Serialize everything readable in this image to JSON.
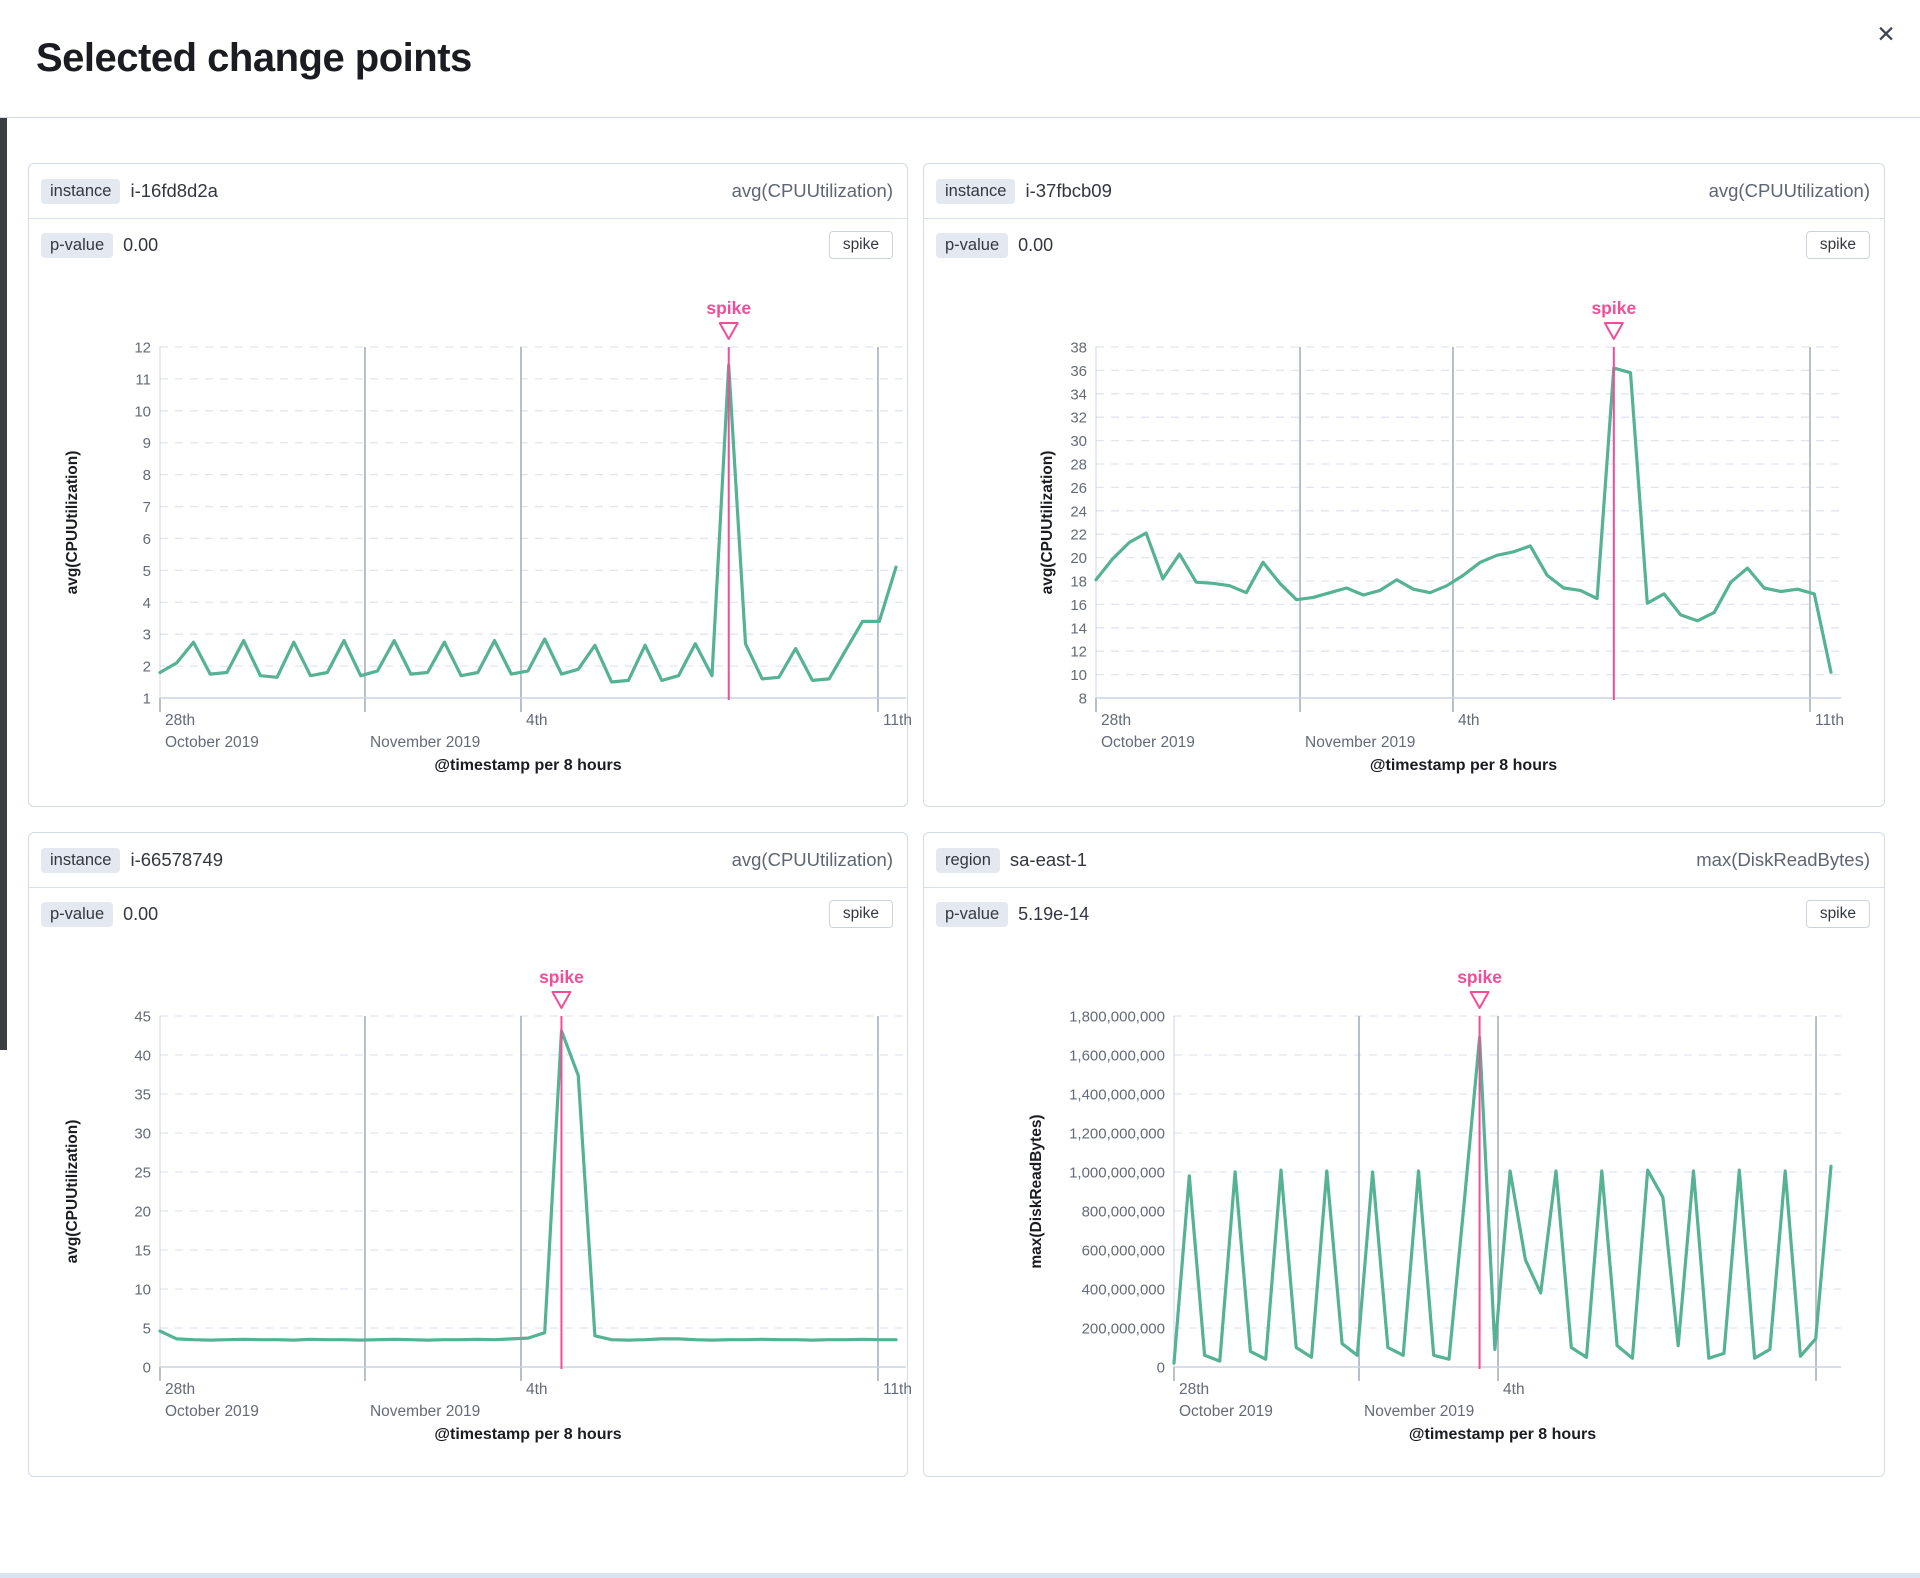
{
  "modal": {
    "title": "Selected change points",
    "close_glyph": "✕"
  },
  "colors": {
    "series_line": "#55b294",
    "accent_pink": "#f04e98",
    "grid_dash": "#e1e5f0",
    "event_line": "#a2aab6",
    "axis_line": "#ccd3e0",
    "tick_text": "#646a77",
    "dark_text": "#1a1c21",
    "metric_text": "#5e6673",
    "badge_bg": "#e4e8f1"
  },
  "panels": [
    {
      "badge": "instance",
      "badge_value": "i-16fd8d2a",
      "metric": "avg(CPUUtilization)",
      "p_label": "p-value",
      "p_value": "0.00",
      "change_type": "spike"
    },
    {
      "badge": "instance",
      "badge_value": "i-37fbcb09",
      "metric": "avg(CPUUtilization)",
      "p_label": "p-value",
      "p_value": "0.00",
      "change_type": "spike"
    },
    {
      "badge": "instance",
      "badge_value": "i-66578749",
      "metric": "avg(CPUUtilization)",
      "p_label": "p-value",
      "p_value": "0.00",
      "change_type": "spike"
    },
    {
      "badge": "region",
      "badge_value": "sa-east-1",
      "metric": "max(DiskReadBytes)",
      "p_label": "p-value",
      "p_value": "5.19e-14",
      "change_type": "spike"
    }
  ],
  "chart_data": [
    {
      "type": "line",
      "title": "instance i-16fd8d2a",
      "ylabel": "avg(CPUUtilization)",
      "xlabel": "@timestamp per 8 hours",
      "ylim": [
        1,
        12
      ],
      "y_ticks": [
        12,
        11,
        10,
        9,
        8,
        7,
        6,
        5,
        4,
        3,
        2,
        1
      ],
      "x_ticks": [
        {
          "frac": 0.0,
          "line": false,
          "label_top": "28th",
          "label_bottom": "October 2019"
        },
        {
          "frac": 0.2785,
          "line": true,
          "label_bottom": "November 2019"
        },
        {
          "frac": 0.4905,
          "line": true,
          "label_top": "4th"
        },
        {
          "frac": 0.9755,
          "line": true,
          "label_top": "11th"
        }
      ],
      "annotation": {
        "label": "spike",
        "index": 34
      },
      "values": [
        1.8,
        2.1,
        2.75,
        1.75,
        1.8,
        2.8,
        1.7,
        1.65,
        2.75,
        1.7,
        1.8,
        2.8,
        1.7,
        1.85,
        2.8,
        1.75,
        1.8,
        2.75,
        1.7,
        1.8,
        2.8,
        1.75,
        1.85,
        2.85,
        1.75,
        1.9,
        2.65,
        1.5,
        1.55,
        2.65,
        1.55,
        1.7,
        2.7,
        1.7,
        11.43,
        2.7,
        1.6,
        1.65,
        2.55,
        1.55,
        1.6,
        2.5,
        3.4,
        3.4,
        5.1
      ]
    },
    {
      "type": "line",
      "title": "instance i-37fbcb09",
      "ylabel": "avg(CPUUtilization)",
      "xlabel": "@timestamp per 8 hours",
      "ylim": [
        8,
        38
      ],
      "y_ticks": [
        38,
        36,
        34,
        32,
        30,
        28,
        26,
        24,
        22,
        20,
        18,
        16,
        14,
        12,
        10,
        8
      ],
      "x_ticks": [
        {
          "frac": 0.0,
          "line": false,
          "label_top": "28th",
          "label_bottom": "October 2019"
        },
        {
          "frac": 0.2776,
          "line": true,
          "label_bottom": "November 2019"
        },
        {
          "frac": 0.4857,
          "line": true,
          "label_top": "4th"
        },
        {
          "frac": 0.9714,
          "line": true,
          "label_top": "11th"
        }
      ],
      "annotation": {
        "label": "spike",
        "index": 31
      },
      "values": [
        18.1,
        19.9,
        21.3,
        22.1,
        18.2,
        20.3,
        17.9,
        17.8,
        17.6,
        17.0,
        19.6,
        17.8,
        16.4,
        16.6,
        17.0,
        17.4,
        16.8,
        17.2,
        18.1,
        17.3,
        17.0,
        17.6,
        18.5,
        19.6,
        20.2,
        20.5,
        21.0,
        18.5,
        17.4,
        17.2,
        16.5,
        36.2,
        35.8,
        16.1,
        16.9,
        15.1,
        14.6,
        15.3,
        17.9,
        19.1,
        17.4,
        17.1,
        17.3,
        16.9,
        10.2
      ]
    },
    {
      "type": "line",
      "title": "instance i-66578749",
      "ylabel": "avg(CPUUtilization)",
      "xlabel": "@timestamp per 8 hours",
      "ylim": [
        0,
        45
      ],
      "y_ticks": [
        45,
        40,
        35,
        30,
        25,
        20,
        15,
        10,
        5,
        0
      ],
      "x_ticks": [
        {
          "frac": 0.0,
          "line": false,
          "label_top": "28th",
          "label_bottom": "October 2019"
        },
        {
          "frac": 0.2785,
          "line": true,
          "label_bottom": "November 2019"
        },
        {
          "frac": 0.4905,
          "line": true,
          "label_top": "4th"
        },
        {
          "frac": 0.9755,
          "line": true,
          "label_top": "11th"
        }
      ],
      "annotation": {
        "label": "spike",
        "index": 24
      },
      "values": [
        4.6,
        3.6,
        3.5,
        3.45,
        3.5,
        3.55,
        3.5,
        3.5,
        3.45,
        3.55,
        3.5,
        3.5,
        3.45,
        3.5,
        3.55,
        3.5,
        3.45,
        3.5,
        3.5,
        3.55,
        3.5,
        3.6,
        3.7,
        4.4,
        43.1,
        37.4,
        4.0,
        3.5,
        3.45,
        3.5,
        3.6,
        3.6,
        3.5,
        3.45,
        3.5,
        3.5,
        3.55,
        3.5,
        3.5,
        3.45,
        3.5,
        3.5,
        3.55,
        3.5,
        3.5
      ]
    },
    {
      "type": "line",
      "title": "region sa-east-1",
      "ylabel": "max(DiskReadBytes)",
      "xlabel": "@timestamp per 8 hours",
      "ylim": [
        0,
        1800000000
      ],
      "y_ticks": [
        1800000000,
        1600000000,
        1400000000,
        1200000000,
        1000000000,
        800000000,
        600000000,
        400000000,
        200000000,
        0
      ],
      "y_tick_labels": [
        "1,800,000,000",
        "1,600,000,000",
        "1,400,000,000",
        "1,200,000,000",
        "1,000,000,000",
        "800,000,000",
        "600,000,000",
        "400,000,000",
        "200,000,000",
        "0"
      ],
      "x_ticks": [
        {
          "frac": 0.0,
          "line": false,
          "label_top": "28th",
          "label_bottom": "October 2019"
        },
        {
          "frac": 0.2816,
          "line": true,
          "label_bottom": "November 2019"
        },
        {
          "frac": 0.4932,
          "line": true,
          "label_top": "4th"
        },
        {
          "frac": 0.9772,
          "line": true
        }
      ],
      "annotation": {
        "label": "spike",
        "index": 20
      },
      "values": [
        20000000,
        980000000,
        60000000,
        30000000,
        1000000000,
        80000000,
        40000000,
        1010000000,
        100000000,
        50000000,
        1005000000,
        120000000,
        60000000,
        1000000000,
        100000000,
        60000000,
        1005000000,
        60000000,
        40000000,
        850000000,
        1690000000,
        90000000,
        1005000000,
        550000000,
        380000000,
        1005000000,
        100000000,
        50000000,
        1005000000,
        110000000,
        45000000,
        1010000000,
        870000000,
        110000000,
        1005000000,
        45000000,
        70000000,
        1010000000,
        45000000,
        90000000,
        1005000000,
        55000000,
        145000000,
        1030000000
      ]
    }
  ]
}
